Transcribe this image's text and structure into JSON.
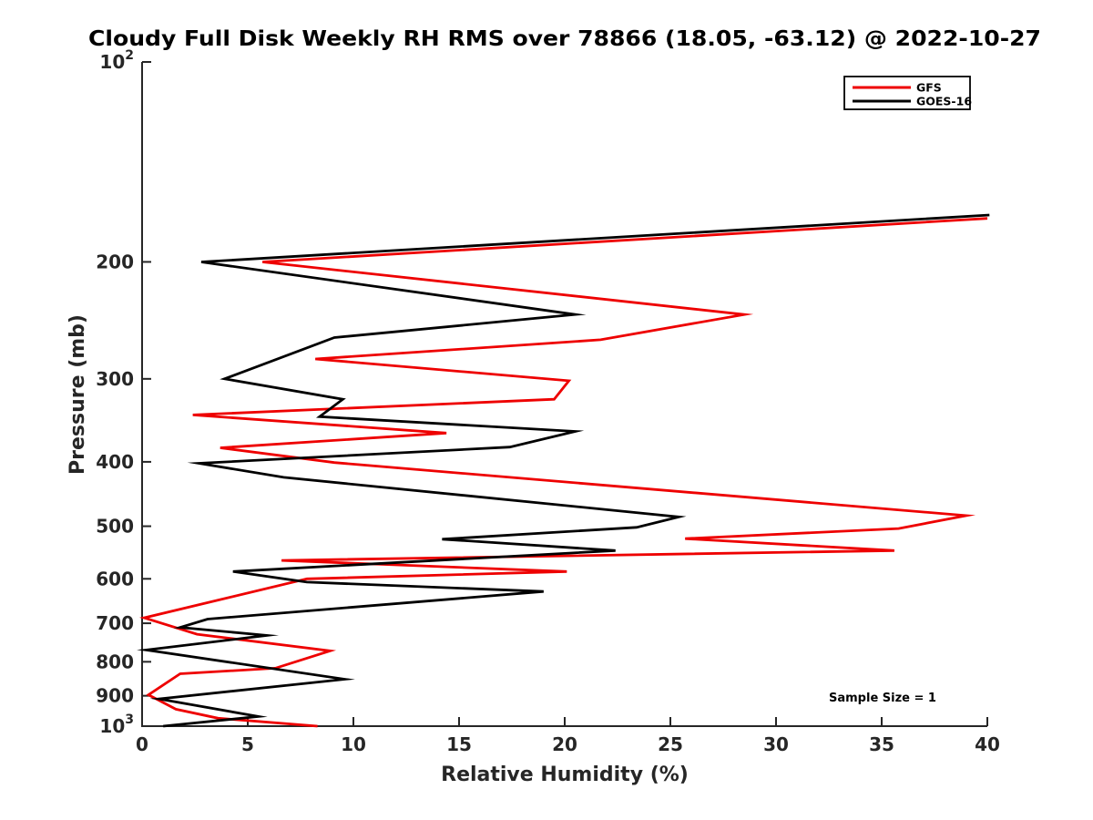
{
  "figure": {
    "background": "#ffffff",
    "axes_color": "#262626"
  },
  "annotation": {
    "text": "Sample Size = 1"
  },
  "legend": {
    "position": "top-right",
    "entries": [
      {
        "label": "GFS",
        "color": "#ee0000"
      },
      {
        "label": "GOES-16",
        "color": "#000000"
      }
    ]
  },
  "chart_data": {
    "type": "line",
    "title": "Cloudy Full Disk Weekly RH RMS over 78866 (18.05, -63.12) @ 2022-10-27",
    "xlabel": "Relative Humidity (%)",
    "ylabel": "Pressure (mb)",
    "xlim": [
      0,
      40
    ],
    "pressure_lim_mb": [
      100,
      1000
    ],
    "y_scale": "log10-inverted",
    "grid": false,
    "x_ticks": [
      0,
      5,
      10,
      15,
      20,
      25,
      30,
      35,
      40
    ],
    "y_ticks": [
      {
        "value": 100,
        "label": "10^2"
      },
      {
        "value": 200,
        "label": "200"
      },
      {
        "value": 300,
        "label": "300"
      },
      {
        "value": 400,
        "label": "400"
      },
      {
        "value": 500,
        "label": "500"
      },
      {
        "value": 600,
        "label": "600"
      },
      {
        "value": 700,
        "label": "700"
      },
      {
        "value": 800,
        "label": "800"
      },
      {
        "value": 900,
        "label": "900"
      },
      {
        "value": 1000,
        "label": "10^3"
      }
    ],
    "sample_size_label": "Sample Size = 1",
    "series": [
      {
        "name": "GFS",
        "color": "#ee0000",
        "points_pressure_rh": [
          [
            172,
            40.0
          ],
          [
            200,
            5.7
          ],
          [
            240,
            28.5
          ],
          [
            262,
            21.7
          ],
          [
            280,
            8.2
          ],
          [
            302,
            20.2
          ],
          [
            322,
            19.5
          ],
          [
            340,
            2.4
          ],
          [
            362,
            14.4
          ],
          [
            381,
            3.7
          ],
          [
            401,
            9.1
          ],
          [
            482,
            39.0
          ],
          [
            504,
            35.8
          ],
          [
            522,
            25.7
          ],
          [
            544,
            35.6
          ],
          [
            563,
            6.6
          ],
          [
            585,
            20.1
          ],
          [
            600,
            7.8
          ],
          [
            687,
            0.1
          ],
          [
            727,
            2.6
          ],
          [
            770,
            8.9
          ],
          [
            818,
            6.3
          ],
          [
            834,
            1.8
          ],
          [
            897,
            0.3
          ],
          [
            943,
            1.6
          ],
          [
            973,
            3.6
          ],
          [
            1000,
            8.3
          ]
        ]
      },
      {
        "name": "GOES-16",
        "color": "#000000",
        "points_pressure_rh": [
          [
            170,
            40.1
          ],
          [
            200,
            2.8
          ],
          [
            240,
            20.5
          ],
          [
            260,
            9.1
          ],
          [
            300,
            3.9
          ],
          [
            322,
            9.5
          ],
          [
            342,
            8.4
          ],
          [
            360,
            20.5
          ],
          [
            380,
            17.4
          ],
          [
            402,
            2.7
          ],
          [
            422,
            6.7
          ],
          [
            484,
            25.4
          ],
          [
            502,
            23.4
          ],
          [
            523,
            14.2
          ],
          [
            544,
            22.4
          ],
          [
            585,
            4.3
          ],
          [
            607,
            7.8
          ],
          [
            627,
            19.0
          ],
          [
            690,
            3.1
          ],
          [
            710,
            1.8
          ],
          [
            730,
            5.9
          ],
          [
            768,
            0.2
          ],
          [
            850,
            9.6
          ],
          [
            910,
            0.8
          ],
          [
            967,
            5.5
          ],
          [
            1000,
            1.0
          ]
        ]
      }
    ]
  }
}
